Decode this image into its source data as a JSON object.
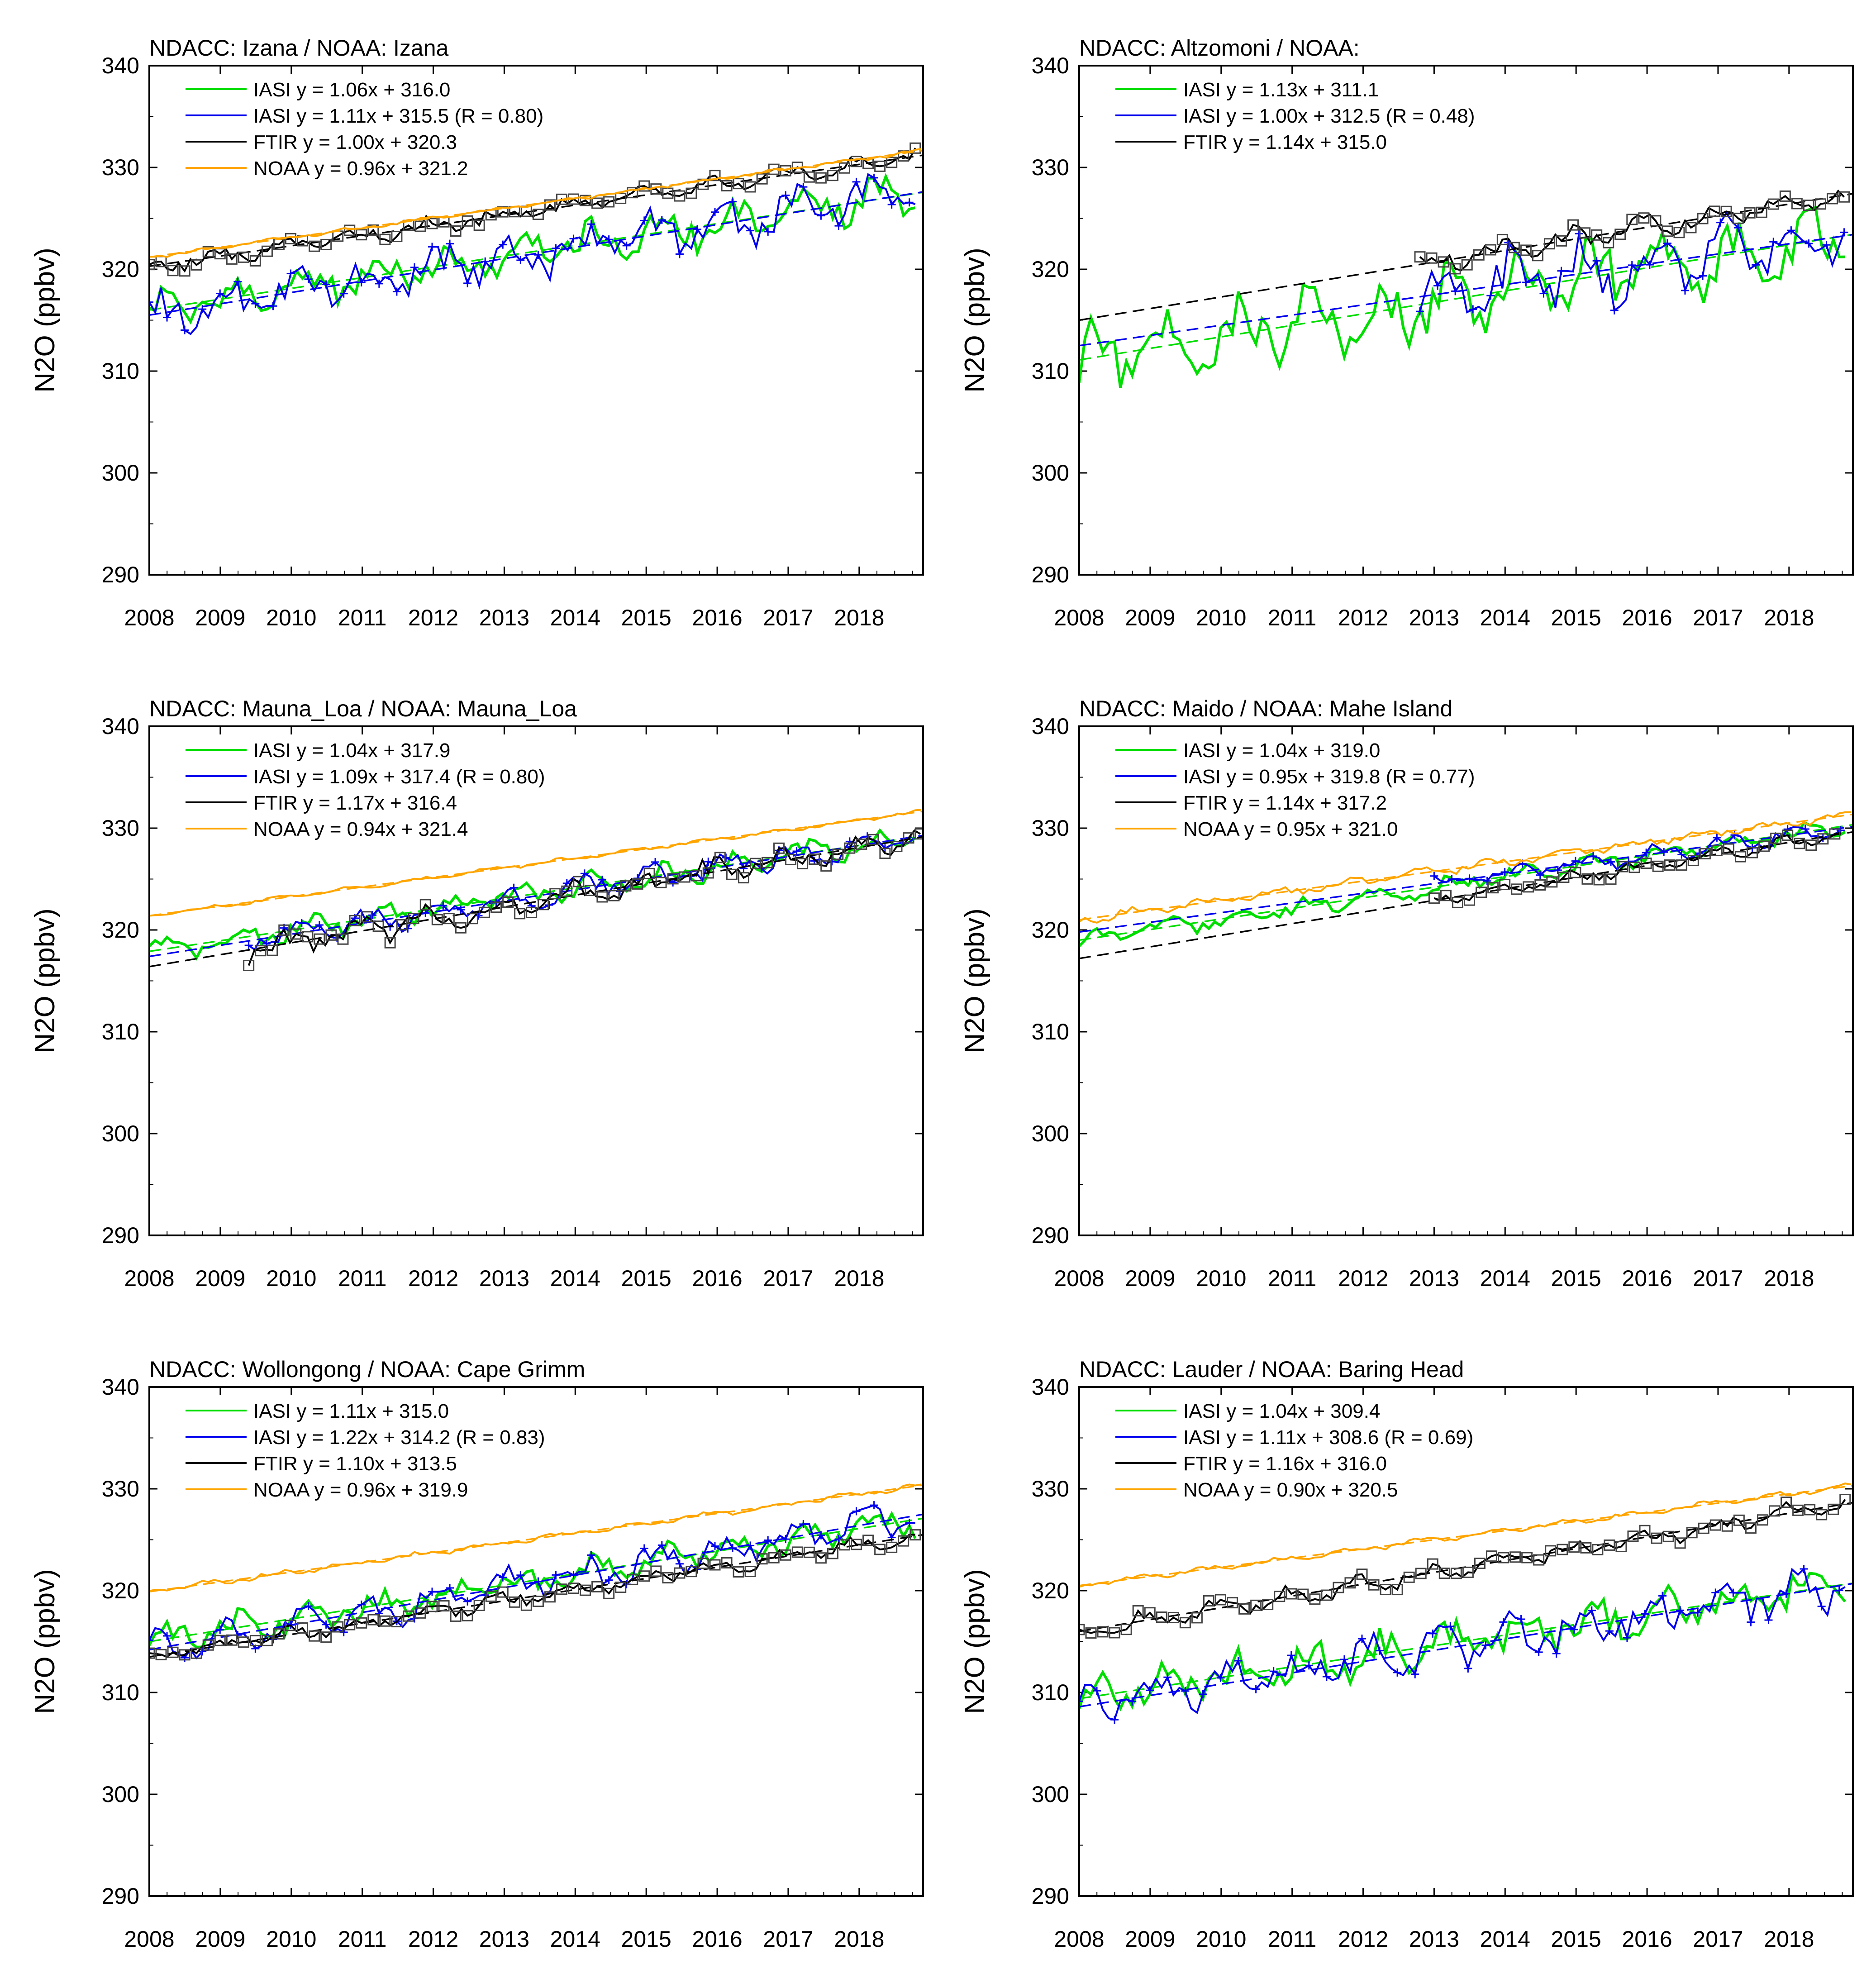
{
  "figure": {
    "ylabel": "N2O (ppbv)"
  },
  "chart_data": [
    {
      "type": "line",
      "title": "NDACC: Izana / NOAA: Izana",
      "xlabel": "",
      "ylabel": "N2O (ppbv)",
      "xlim": [
        2008,
        2018.9
      ],
      "ylim": [
        290,
        340
      ],
      "xticks": [
        2008,
        2009,
        2010,
        2011,
        2012,
        2013,
        2014,
        2015,
        2016,
        2017,
        2018
      ],
      "yticks": [
        290,
        300,
        310,
        320,
        330,
        340
      ],
      "legend": [
        "IASI y = 1.06x + 316.0",
        "IASI y = 1.11x + 315.5 (R = 0.80)",
        "FTIR y = 1.00x + 320.3",
        "NOAA y = 0.96x + 321.2"
      ],
      "series": [
        {
          "name": "IASI (green)",
          "color": "#00dd00",
          "slope": 1.06,
          "intercept": 316.0,
          "noise": 2.2,
          "start": 2008.0,
          "end": 2018.8,
          "step": 0.083
        },
        {
          "name": "IASI (blue)",
          "color": "#0000ee",
          "slope": 1.11,
          "intercept": 315.5,
          "noise": 2.4,
          "start": 2008.0,
          "end": 2018.8,
          "step": 0.083,
          "markers": "plus"
        },
        {
          "name": "FTIR",
          "color": "#000000",
          "slope": 1.0,
          "intercept": 320.3,
          "noise": 0.9,
          "start": 2008.0,
          "end": 2018.8,
          "step": 0.083,
          "markers": "square"
        },
        {
          "name": "NOAA",
          "color": "#ffa500",
          "slope": 0.96,
          "intercept": 321.2,
          "noise": 0.2,
          "start": 2008.0,
          "end": 2018.9,
          "step": 0.083
        }
      ]
    },
    {
      "type": "line",
      "title": "NDACC: Altzomoni / NOAA:",
      "xlabel": "",
      "ylabel": "N2O (ppbv)",
      "xlim": [
        2008,
        2018.9
      ],
      "ylim": [
        290,
        340
      ],
      "xticks": [
        2008,
        2009,
        2010,
        2011,
        2012,
        2013,
        2014,
        2015,
        2016,
        2017,
        2018
      ],
      "yticks": [
        290,
        300,
        310,
        320,
        330,
        340
      ],
      "legend": [
        "IASI y = 1.13x + 311.1",
        "IASI y = 1.00x + 312.5 (R = 0.48)",
        "FTIR y = 1.14x + 315.0"
      ],
      "series": [
        {
          "name": "IASI (green)",
          "color": "#00dd00",
          "slope": 1.13,
          "intercept": 311.1,
          "noise": 3.8,
          "start": 2008.0,
          "end": 2018.8,
          "step": 0.083
        },
        {
          "name": "IASI (blue)",
          "color": "#0000ee",
          "slope": 1.0,
          "intercept": 312.5,
          "noise": 3.5,
          "start": 2012.8,
          "end": 2018.8,
          "step": 0.083,
          "markers": "plus"
        },
        {
          "name": "FTIR",
          "color": "#000000",
          "slope": 1.14,
          "intercept": 315.0,
          "noise": 1.2,
          "start": 2012.8,
          "end": 2018.8,
          "step": 0.083,
          "markers": "square"
        }
      ]
    },
    {
      "type": "line",
      "title": "NDACC: Mauna_Loa / NOAA: Mauna_Loa",
      "xlabel": "",
      "ylabel": "N2O (ppbv)",
      "xlim": [
        2008,
        2018.9
      ],
      "ylim": [
        290,
        340
      ],
      "xticks": [
        2008,
        2009,
        2010,
        2011,
        2012,
        2013,
        2014,
        2015,
        2016,
        2017,
        2018
      ],
      "yticks": [
        290,
        300,
        310,
        320,
        330,
        340
      ],
      "legend": [
        "IASI y = 1.04x + 317.9",
        "IASI y = 1.09x + 317.4 (R = 0.80)",
        "FTIR y = 1.17x + 316.4",
        "NOAA y = 0.94x + 321.4"
      ],
      "series": [
        {
          "name": "IASI (green)",
          "color": "#00dd00",
          "slope": 1.04,
          "intercept": 317.9,
          "noise": 1.3,
          "start": 2008.0,
          "end": 2018.8,
          "step": 0.083
        },
        {
          "name": "IASI (blue)",
          "color": "#0000ee",
          "slope": 1.09,
          "intercept": 317.4,
          "noise": 1.3,
          "start": 2009.4,
          "end": 2018.8,
          "step": 0.083,
          "markers": "plus"
        },
        {
          "name": "FTIR",
          "color": "#000000",
          "slope": 1.17,
          "intercept": 316.4,
          "noise": 1.4,
          "start": 2009.4,
          "end": 2018.9,
          "step": 0.083,
          "markers": "square"
        },
        {
          "name": "NOAA",
          "color": "#ffa500",
          "slope": 0.94,
          "intercept": 321.4,
          "noise": 0.2,
          "start": 2008.0,
          "end": 2018.9,
          "step": 0.083
        }
      ]
    },
    {
      "type": "line",
      "title": "NDACC: Maido / NOAA: Mahe Island",
      "xlabel": "",
      "ylabel": "N2O (ppbv)",
      "xlim": [
        2008,
        2018.9
      ],
      "ylim": [
        290,
        340
      ],
      "xticks": [
        2008,
        2009,
        2010,
        2011,
        2012,
        2013,
        2014,
        2015,
        2016,
        2017,
        2018
      ],
      "yticks": [
        290,
        300,
        310,
        320,
        330,
        340
      ],
      "legend": [
        "IASI y = 1.04x + 319.0",
        "IASI y = 0.95x + 319.8 (R = 0.77)",
        "FTIR y = 1.14x + 317.2",
        "NOAA y = 0.95x + 321.0"
      ],
      "series": [
        {
          "name": "IASI (green)",
          "color": "#00dd00",
          "slope": 1.04,
          "intercept": 319.0,
          "noise": 1.0,
          "start": 2008.0,
          "end": 2018.8,
          "step": 0.083
        },
        {
          "name": "IASI (blue)",
          "color": "#0000ee",
          "slope": 0.95,
          "intercept": 319.8,
          "noise": 0.9,
          "start": 2013.0,
          "end": 2018.8,
          "step": 0.083,
          "markers": "plus"
        },
        {
          "name": "FTIR",
          "color": "#000000",
          "slope": 1.14,
          "intercept": 317.2,
          "noise": 0.7,
          "start": 2013.0,
          "end": 2018.8,
          "step": 0.083,
          "markers": "square"
        },
        {
          "name": "NOAA",
          "color": "#ffa500",
          "slope": 0.95,
          "intercept": 321.0,
          "noise": 0.5,
          "start": 2008.0,
          "end": 2018.9,
          "step": 0.083
        }
      ]
    },
    {
      "type": "line",
      "title": "NDACC: Wollongong / NOAA: Cape Grimm",
      "xlabel": "",
      "ylabel": "N2O (ppbv)",
      "xlim": [
        2008,
        2018.9
      ],
      "ylim": [
        290,
        340
      ],
      "xticks": [
        2008,
        2009,
        2010,
        2011,
        2012,
        2013,
        2014,
        2015,
        2016,
        2017,
        2018
      ],
      "yticks": [
        290,
        300,
        310,
        320,
        330,
        340
      ],
      "legend": [
        "IASI y = 1.11x + 315.0",
        "IASI y = 1.22x + 314.2 (R = 0.83)",
        "FTIR y = 1.10x + 313.5",
        "NOAA y = 0.96x + 319.9"
      ],
      "series": [
        {
          "name": "IASI (green)",
          "color": "#00dd00",
          "slope": 1.11,
          "intercept": 315.0,
          "noise": 1.7,
          "start": 2008.0,
          "end": 2018.8,
          "step": 0.083
        },
        {
          "name": "IASI (blue)",
          "color": "#0000ee",
          "slope": 1.22,
          "intercept": 314.2,
          "noise": 1.8,
          "start": 2008.0,
          "end": 2018.8,
          "step": 0.083,
          "markers": "plus"
        },
        {
          "name": "FTIR",
          "color": "#000000",
          "slope": 1.1,
          "intercept": 313.5,
          "noise": 0.8,
          "start": 2008.0,
          "end": 2018.8,
          "step": 0.083,
          "markers": "square"
        },
        {
          "name": "NOAA",
          "color": "#ffa500",
          "slope": 0.96,
          "intercept": 319.9,
          "noise": 0.3,
          "start": 2008.0,
          "end": 2018.9,
          "step": 0.083
        }
      ]
    },
    {
      "type": "line",
      "title": "NDACC: Lauder / NOAA: Baring Head",
      "xlabel": "",
      "ylabel": "N2O (ppbv)",
      "xlim": [
        2008,
        2018.9
      ],
      "ylim": [
        290,
        340
      ],
      "xticks": [
        2008,
        2009,
        2010,
        2011,
        2012,
        2013,
        2014,
        2015,
        2016,
        2017,
        2018
      ],
      "yticks": [
        290,
        300,
        310,
        320,
        330,
        340
      ],
      "legend": [
        "IASI y = 1.04x + 309.4",
        "IASI y = 1.11x + 308.6 (R = 0.69)",
        "FTIR y = 1.16x + 316.0",
        "NOAA y = 0.90x + 320.5"
      ],
      "series": [
        {
          "name": "IASI (green)",
          "color": "#00dd00",
          "slope": 1.04,
          "intercept": 309.4,
          "noise": 2.2,
          "start": 2008.0,
          "end": 2018.8,
          "step": 0.083
        },
        {
          "name": "IASI (blue)",
          "color": "#0000ee",
          "slope": 1.11,
          "intercept": 308.6,
          "noise": 2.3,
          "start": 2008.0,
          "end": 2018.8,
          "step": 0.083,
          "markers": "plus"
        },
        {
          "name": "FTIR",
          "color": "#000000",
          "slope": 1.16,
          "intercept": 316.0,
          "noise": 1.0,
          "start": 2008.0,
          "end": 2018.8,
          "step": 0.083,
          "markers": "square"
        },
        {
          "name": "NOAA",
          "color": "#ffa500",
          "slope": 0.9,
          "intercept": 320.5,
          "noise": 0.3,
          "start": 2008.0,
          "end": 2018.9,
          "step": 0.083
        }
      ]
    }
  ]
}
